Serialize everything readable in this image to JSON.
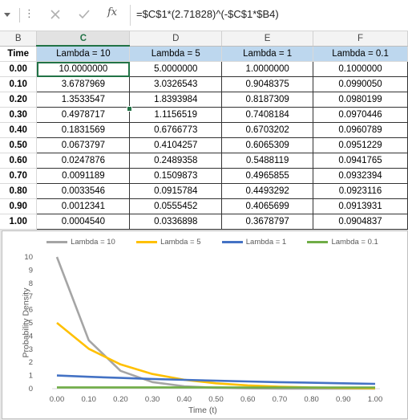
{
  "formula_bar": {
    "formula": "=$C$1*(2.71828)^(-$C$1*$B4)",
    "fx_label": "fx"
  },
  "columns": [
    "B",
    "C",
    "D",
    "E",
    "F"
  ],
  "selected_column": "C",
  "header_row": [
    "Time",
    "Lambda = 10",
    "Lambda = 5",
    "Lambda = 1",
    "Lambda = 0.1"
  ],
  "rows": [
    [
      "0.00",
      "10.0000000",
      "5.0000000",
      "1.0000000",
      "0.1000000"
    ],
    [
      "0.10",
      "3.6787969",
      "3.0326543",
      "0.9048375",
      "0.0990050"
    ],
    [
      "0.20",
      "1.3533547",
      "1.8393984",
      "0.8187309",
      "0.0980199"
    ],
    [
      "0.30",
      "0.4978717",
      "1.1156519",
      "0.7408184",
      "0.0970446"
    ],
    [
      "0.40",
      "0.1831569",
      "0.6766773",
      "0.6703202",
      "0.0960789"
    ],
    [
      "0.50",
      "0.0673797",
      "0.4104257",
      "0.6065309",
      "0.0951229"
    ],
    [
      "0.60",
      "0.0247876",
      "0.2489358",
      "0.5488119",
      "0.0941765"
    ],
    [
      "0.70",
      "0.0091189",
      "0.1509873",
      "0.4965855",
      "0.0932394"
    ],
    [
      "0.80",
      "0.0033546",
      "0.0915784",
      "0.4493292",
      "0.0923116"
    ],
    [
      "0.90",
      "0.0012341",
      "0.0555452",
      "0.4065699",
      "0.0913931"
    ],
    [
      "1.00",
      "0.0004540",
      "0.0336898",
      "0.3678797",
      "0.0904837"
    ]
  ],
  "chart_data": {
    "type": "line",
    "title": "",
    "xlabel": "Time (t)",
    "ylabel": "Probability Density",
    "x": [
      "0.00",
      "0.10",
      "0.20",
      "0.30",
      "0.40",
      "0.50",
      "0.60",
      "0.70",
      "0.80",
      "0.90",
      "1.00"
    ],
    "ylim": [
      0,
      10
    ],
    "yticks": [
      "0",
      "1",
      "2",
      "3",
      "4",
      "5",
      "6",
      "7",
      "8",
      "9",
      "10"
    ],
    "legend_position": "top",
    "grid": false,
    "series": [
      {
        "name": "Lambda = 10",
        "color": "#a5a5a5",
        "values": [
          10.0,
          3.6787969,
          1.3533547,
          0.4978717,
          0.1831569,
          0.0673797,
          0.0247876,
          0.0091189,
          0.0033546,
          0.0012341,
          0.000454
        ]
      },
      {
        "name": "Lambda = 5",
        "color": "#ffc000",
        "values": [
          5.0,
          3.0326543,
          1.8393984,
          1.1156519,
          0.6766773,
          0.4104257,
          0.2489358,
          0.1509873,
          0.0915784,
          0.0555452,
          0.0336898
        ]
      },
      {
        "name": "Lambda = 1",
        "color": "#4472c4",
        "values": [
          1.0,
          0.9048375,
          0.8187309,
          0.7408184,
          0.6703202,
          0.6065309,
          0.5488119,
          0.4965855,
          0.4493292,
          0.4065699,
          0.3678797
        ]
      },
      {
        "name": "Lambda = 0.1",
        "color": "#70ad47",
        "values": [
          0.1,
          0.099005,
          0.0980199,
          0.0970446,
          0.0960789,
          0.0951229,
          0.0941765,
          0.0932394,
          0.0923116,
          0.0913931,
          0.0904837
        ]
      }
    ]
  }
}
